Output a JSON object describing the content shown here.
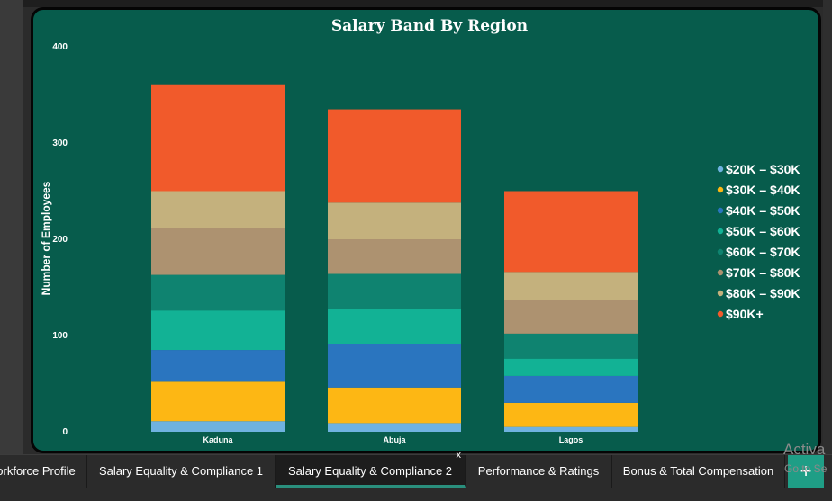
{
  "chart_data": {
    "type": "bar",
    "stacked": true,
    "title": "Salary Band By Region",
    "ylabel": "Number of Employees",
    "xlabel": "",
    "ylim": [
      0,
      400
    ],
    "yticks": [
      0,
      100,
      200,
      300,
      400
    ],
    "categories": [
      "Kaduna",
      "Abuja",
      "Lagos"
    ],
    "legend_position": "right",
    "grid": false,
    "series": [
      {
        "name": "$20K – $30K",
        "color": "#6fb2e0",
        "values": [
          11,
          9,
          5
        ]
      },
      {
        "name": "$30K – $40K",
        "color": "#fdb714",
        "values": [
          41,
          37,
          25
        ]
      },
      {
        "name": "$40K – $50K",
        "color": "#2a75bf",
        "values": [
          33,
          45,
          28
        ]
      },
      {
        "name": "$50K – $60K",
        "color": "#12b295",
        "values": [
          41,
          37,
          18
        ]
      },
      {
        "name": "$60K – $70K",
        "color": "#0f8370",
        "values": [
          37,
          36,
          26
        ]
      },
      {
        "name": "$70K – $80K",
        "color": "#ad9270",
        "values": [
          49,
          36,
          35
        ]
      },
      {
        "name": "$80K – $90K",
        "color": "#c4b17d",
        "values": [
          38,
          38,
          29
        ]
      },
      {
        "name": "$90K+",
        "color": "#f15a2b",
        "values": [
          111,
          97,
          84
        ]
      }
    ]
  },
  "tabs": [
    {
      "label": "Workforce Profile",
      "active": false
    },
    {
      "label": "Salary Equality & Compliance 1",
      "active": false
    },
    {
      "label": "Salary Equality & Compliance 2",
      "active": true,
      "close": "x"
    },
    {
      "label": "Performance & Ratings",
      "active": false
    },
    {
      "label": "Bonus & Total Compensation",
      "active": false
    }
  ],
  "add_tab_icon": "+",
  "watermark": {
    "line1": "Activa",
    "line2": "Go to Se"
  }
}
